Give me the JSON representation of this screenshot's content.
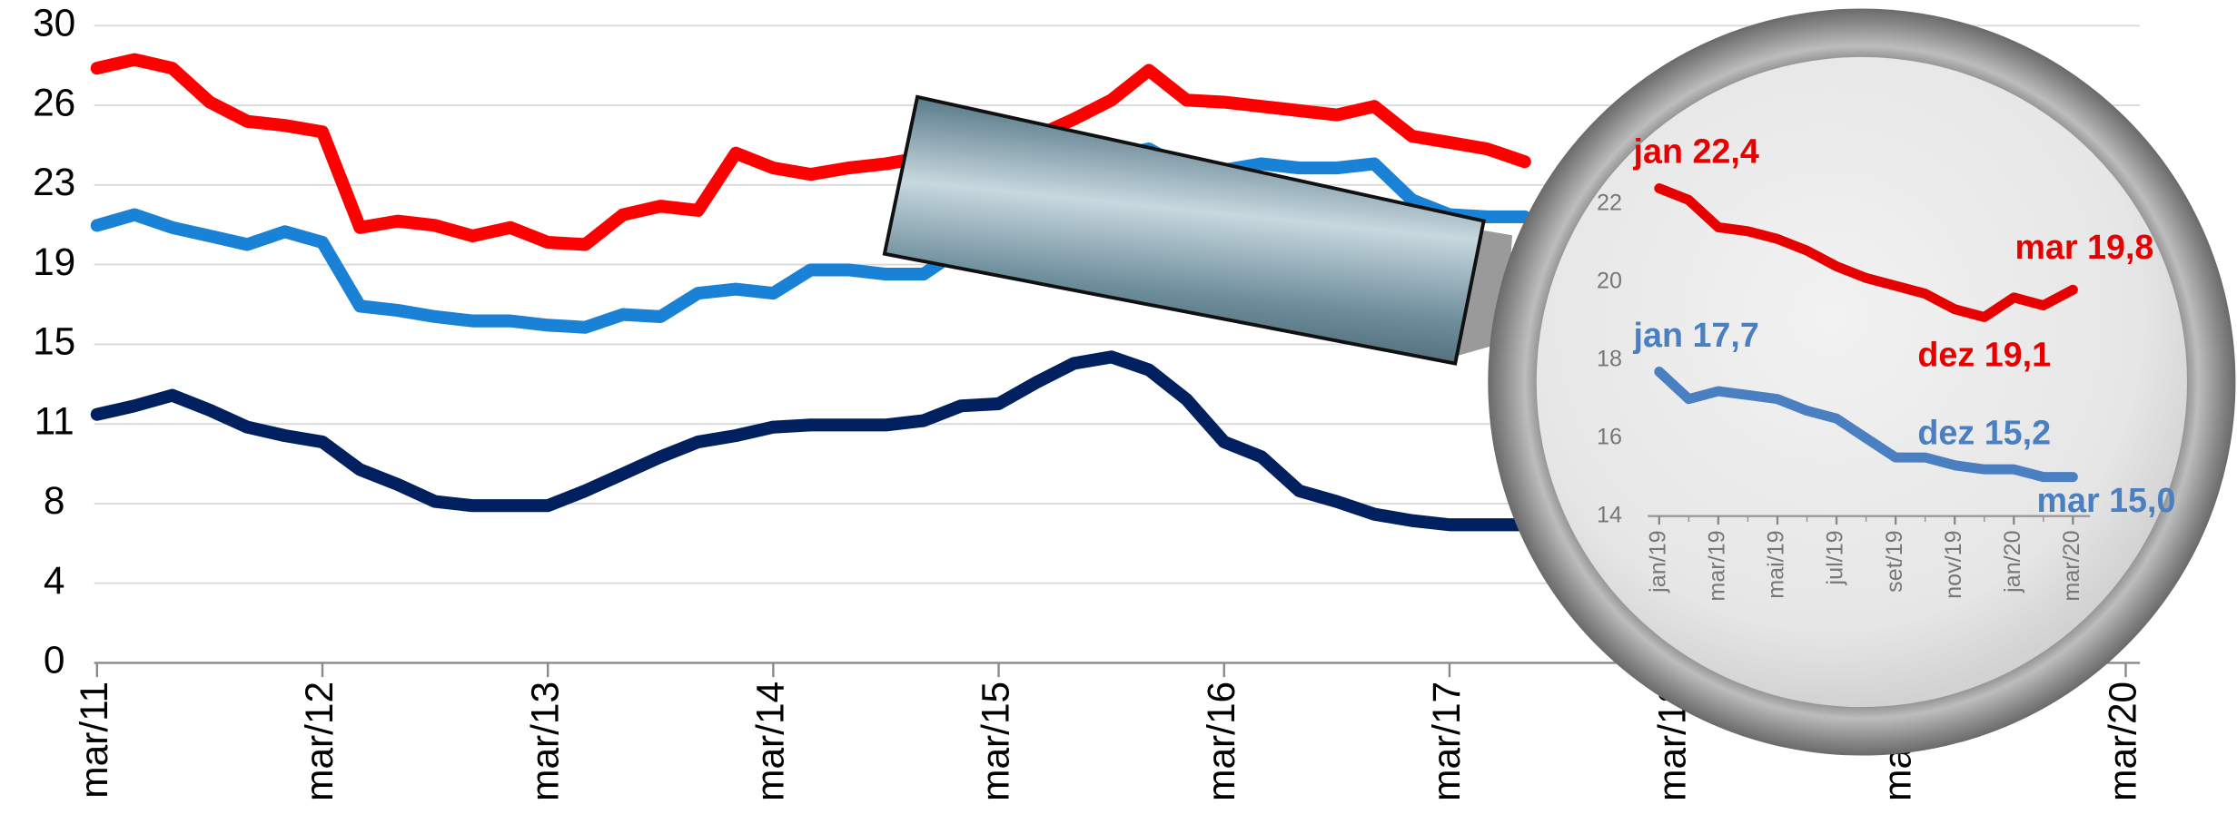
{
  "chart_data": [
    {
      "type": "line",
      "x": [
        "2011-03",
        "2011-05",
        "2011-07",
        "2011-09",
        "2011-11",
        "2012-01",
        "2012-03",
        "2012-05",
        "2012-07",
        "2012-09",
        "2012-11",
        "2013-01",
        "2013-03",
        "2013-05",
        "2013-07",
        "2013-09",
        "2013-11",
        "2014-01",
        "2014-03",
        "2014-05",
        "2014-07",
        "2014-09",
        "2014-11",
        "2015-01",
        "2015-03",
        "2015-05",
        "2015-07",
        "2015-09",
        "2015-11",
        "2016-01",
        "2016-03",
        "2016-05",
        "2016-07",
        "2016-09",
        "2016-11",
        "2017-01",
        "2017-03",
        "2017-05",
        "2017-07"
      ],
      "series": [
        {
          "color": "#ff0000",
          "values": [
            28,
            28.4,
            28,
            26.4,
            25.5,
            25.3,
            25,
            20.5,
            20.8,
            20.6,
            20.1,
            20.5,
            19.8,
            19.7,
            21.1,
            21.5,
            21.3,
            24,
            23.3,
            23,
            23.3,
            23.5,
            23.8,
            24,
            24.5,
            24.8,
            25.6,
            26.5,
            27.9,
            26.5,
            26.4,
            26.2,
            26,
            25.8,
            26.2,
            24.8,
            24.5,
            24.2,
            23.6
          ]
        },
        {
          "color": "#1a82d6",
          "values": [
            20.6,
            21.1,
            20.5,
            20.1,
            19.7,
            20.3,
            19.8,
            16.8,
            16.6,
            16.3,
            16.1,
            16.1,
            15.9,
            15.8,
            16.4,
            16.3,
            17.4,
            17.6,
            17.4,
            18.5,
            18.5,
            18.3,
            18.3,
            19.5,
            20.5,
            22,
            23,
            23.8,
            24.2,
            23.2,
            23.2,
            23.5,
            23.3,
            23.3,
            23.5,
            21.8,
            21.1,
            21,
            21
          ]
        },
        {
          "color": "#002060",
          "values": [
            11.7,
            12.1,
            12.6,
            11.9,
            11.1,
            10.7,
            10.4,
            9.1,
            8.4,
            7.6,
            7.4,
            7.4,
            7.4,
            8.1,
            8.9,
            9.7,
            10.4,
            10.7,
            11.1,
            11.2,
            11.2,
            11.2,
            11.4,
            12.1,
            12.2,
            13.2,
            14.1,
            14.4,
            13.8,
            12.4,
            10.4,
            9.7,
            8.1,
            7.6,
            7,
            6.7,
            6.5,
            6.5,
            6.5
          ]
        }
      ],
      "xlim": [
        "2011-03",
        "2020-03"
      ],
      "xticks": [
        {
          "value": "2011-03",
          "label": "mar/11"
        },
        {
          "value": "2012-03",
          "label": "mar/12"
        },
        {
          "value": "2013-03",
          "label": "mar/13"
        },
        {
          "value": "2014-03",
          "label": "mar/14"
        },
        {
          "value": "2015-03",
          "label": "mar/15"
        },
        {
          "value": "2016-03",
          "label": "mar/16"
        },
        {
          "value": "2017-03",
          "label": "mar/17"
        },
        {
          "value": "2018-03",
          "label": "mar/18"
        },
        {
          "value": "2019-03",
          "label": "mar/19"
        },
        {
          "value": "2020-03",
          "label": "mar/20"
        }
      ],
      "ylim": [
        0,
        30
      ],
      "yticks": [
        0,
        {
          "value": 3.75,
          "label": "4"
        },
        {
          "value": 7.5,
          "label": "8"
        },
        {
          "value": 11.25,
          "label": "11"
        },
        15,
        {
          "value": 18.75,
          "label": "19"
        },
        {
          "value": 22.5,
          "label": "23"
        },
        {
          "value": 26.25,
          "label": "26"
        },
        30
      ],
      "grid": true
    },
    {
      "type": "line",
      "x": [
        "2019-01",
        "2019-02",
        "2019-03",
        "2019-04",
        "2019-05",
        "2019-06",
        "2019-07",
        "2019-08",
        "2019-09",
        "2019-10",
        "2019-11",
        "2019-12",
        "2020-01",
        "2020-02",
        "2020-03"
      ],
      "series": [
        {
          "color": "#e60000",
          "values": [
            22.4,
            22.1,
            21.4,
            21.3,
            21.1,
            20.8,
            20.4,
            20.1,
            19.9,
            19.7,
            19.3,
            19.1,
            19.6,
            19.4,
            19.8
          ],
          "value_labels": [
            "jan 22,4",
            null,
            null,
            null,
            null,
            null,
            null,
            null,
            null,
            null,
            null,
            "dez 19,1",
            null,
            null,
            "mar 19,8"
          ]
        },
        {
          "color": "#4a7fc1",
          "values": [
            17.7,
            17.0,
            17.2,
            17.1,
            17.0,
            16.7,
            16.5,
            16.0,
            15.5,
            15.5,
            15.3,
            15.2,
            15.2,
            15.0,
            15.0
          ],
          "value_labels": [
            "jan 17,7",
            null,
            null,
            null,
            null,
            null,
            null,
            null,
            null,
            null,
            null,
            "dez 15,2",
            null,
            null,
            "mar 15,0"
          ]
        }
      ],
      "xlim": [
        "2019-01",
        "2020-03"
      ],
      "xticks": [
        {
          "value": "2019-01",
          "label": "jan/19"
        },
        {
          "value": "2019-03",
          "label": "mar/19"
        },
        {
          "value": "2019-05",
          "label": "mai/19"
        },
        {
          "value": "2019-07",
          "label": "jul/19"
        },
        {
          "value": "2019-09",
          "label": "set/19"
        },
        {
          "value": "2019-11",
          "label": "nov/19"
        },
        {
          "value": "2020-01",
          "label": "jan/20"
        },
        {
          "value": "2020-03",
          "label": "mar/20"
        }
      ],
      "ylim": [
        14,
        22
      ],
      "yticks": [
        14,
        16,
        18,
        20,
        22
      ]
    }
  ]
}
